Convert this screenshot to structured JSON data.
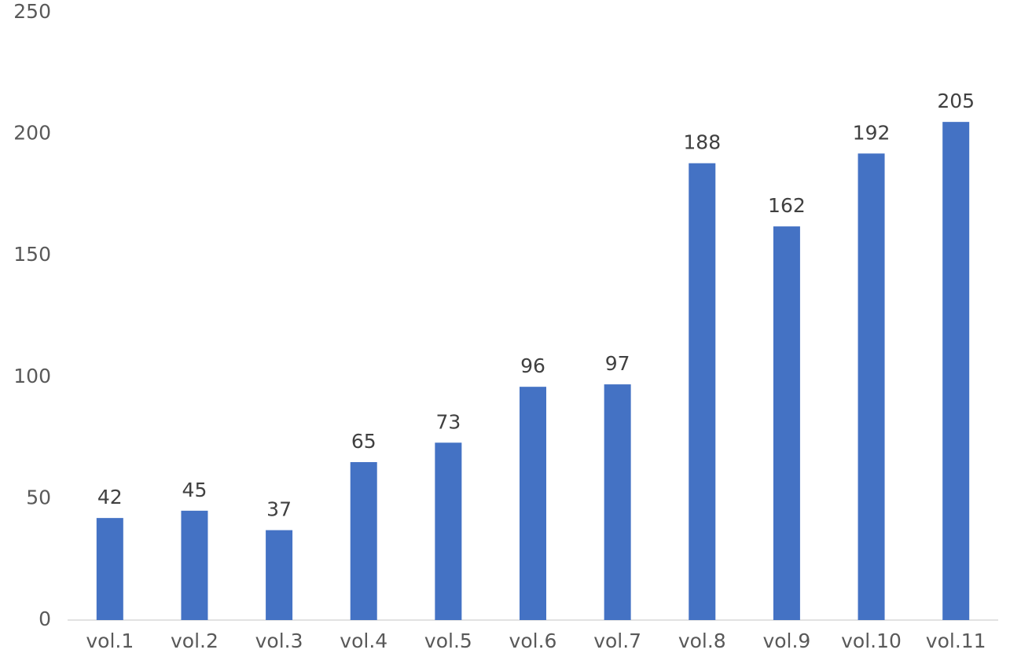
{
  "chart_data": {
    "type": "bar",
    "categories": [
      "vol.1",
      "vol.2",
      "vol.3",
      "vol.4",
      "vol.5",
      "vol.6",
      "vol.7",
      "vol.8",
      "vol.9",
      "vol.10",
      "vol.11"
    ],
    "values": [
      42,
      45,
      37,
      65,
      73,
      96,
      97,
      188,
      162,
      192,
      205
    ],
    "color": "#4472c4",
    "ylim": [
      0,
      250
    ],
    "yticks": [
      0,
      50,
      100,
      150,
      200,
      250
    ],
    "grid": false
  }
}
